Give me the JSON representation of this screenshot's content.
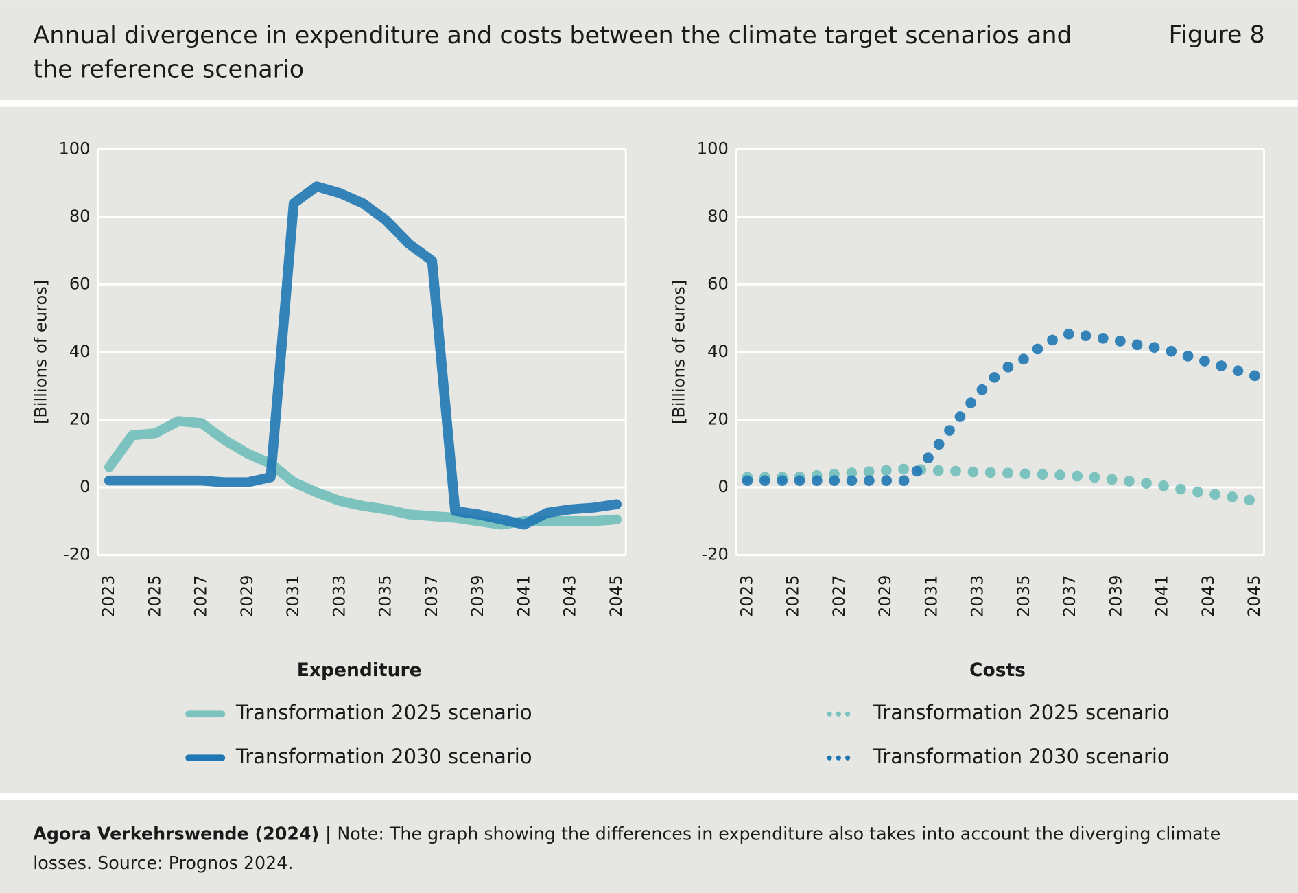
{
  "header": {
    "title": "Annual divergence in expenditure and costs between the climate target scenarios and the reference scenario",
    "figure": "Figure 8"
  },
  "chart_data": [
    {
      "type": "line",
      "title": "Expenditure",
      "ylabel": "[Billions of euros]",
      "x": [
        2023,
        2024,
        2025,
        2026,
        2027,
        2028,
        2029,
        2030,
        2031,
        2032,
        2033,
        2034,
        2035,
        2036,
        2037,
        2038,
        2039,
        2040,
        2041,
        2042,
        2043,
        2044,
        2045
      ],
      "xlim": [
        2022.5,
        2045.4
      ],
      "xticks": [
        2023,
        2025,
        2027,
        2029,
        2031,
        2033,
        2035,
        2037,
        2039,
        2041,
        2043,
        2045
      ],
      "ylim": [
        -20,
        100
      ],
      "yticks": [
        -20,
        0,
        20,
        40,
        60,
        80,
        100
      ],
      "grid": true,
      "series": [
        {
          "name": "Transformation 2025 scenario",
          "color": "#7cc3bf",
          "linestyle": "solid",
          "values": [
            6,
            15.4,
            16,
            19.6,
            19,
            14,
            10,
            7,
            1.5,
            -1.5,
            -4,
            -5.5,
            -6.5,
            -8,
            -8.5,
            -9,
            -10,
            -11,
            -10,
            -10,
            -10,
            -10,
            -9.5
          ]
        },
        {
          "name": "Transformation 2030 scenario",
          "color": "#1f77b4",
          "linestyle": "solid",
          "values": [
            2,
            2,
            2,
            2,
            2,
            1.5,
            1.5,
            3,
            84,
            89,
            87,
            84,
            79,
            72,
            67,
            -7,
            -8,
            -9.5,
            -11,
            -7.5,
            -6.5,
            -6,
            -5
          ]
        }
      ]
    },
    {
      "type": "line",
      "title": "Costs",
      "ylabel": "[Billions of euros]",
      "x": [
        2023,
        2024,
        2025,
        2026,
        2027,
        2028,
        2029,
        2030,
        2031,
        2032,
        2033,
        2034,
        2035,
        2036,
        2037,
        2038,
        2039,
        2040,
        2041,
        2042,
        2043,
        2044,
        2045
      ],
      "xlim": [
        2022.5,
        2045.4
      ],
      "xticks": [
        2023,
        2025,
        2027,
        2029,
        2031,
        2033,
        2035,
        2037,
        2039,
        2041,
        2043,
        2045
      ],
      "ylim": [
        -20,
        100
      ],
      "yticks": [
        -20,
        0,
        20,
        40,
        60,
        80,
        100
      ],
      "grid": true,
      "series": [
        {
          "name": "Transformation 2025 scenario",
          "color": "#7cc3bf",
          "linestyle": "dotted",
          "values": [
            3,
            3,
            3,
            3.5,
            4,
            4.5,
            5,
            5.5,
            5,
            4.8,
            4.5,
            4.3,
            4,
            3.8,
            3.5,
            3,
            2.2,
            1.5,
            0.5,
            -0.8,
            -1.8,
            -2.8,
            -4
          ]
        },
        {
          "name": "Transformation 2030 scenario",
          "color": "#1f77b4",
          "linestyle": "dotted",
          "values": [
            2,
            2,
            2,
            2,
            2,
            2,
            2,
            2,
            10,
            19,
            27.7,
            34.5,
            38,
            43,
            45.5,
            44.5,
            43.5,
            42,
            41,
            39,
            37,
            35,
            33
          ]
        }
      ]
    }
  ],
  "footer": {
    "source": "Agora Verkehrswende (2024) |",
    "note": "Note: The graph showing the differences in expenditure also takes into account the diverging climate losses. Source: Prognos 2024."
  }
}
